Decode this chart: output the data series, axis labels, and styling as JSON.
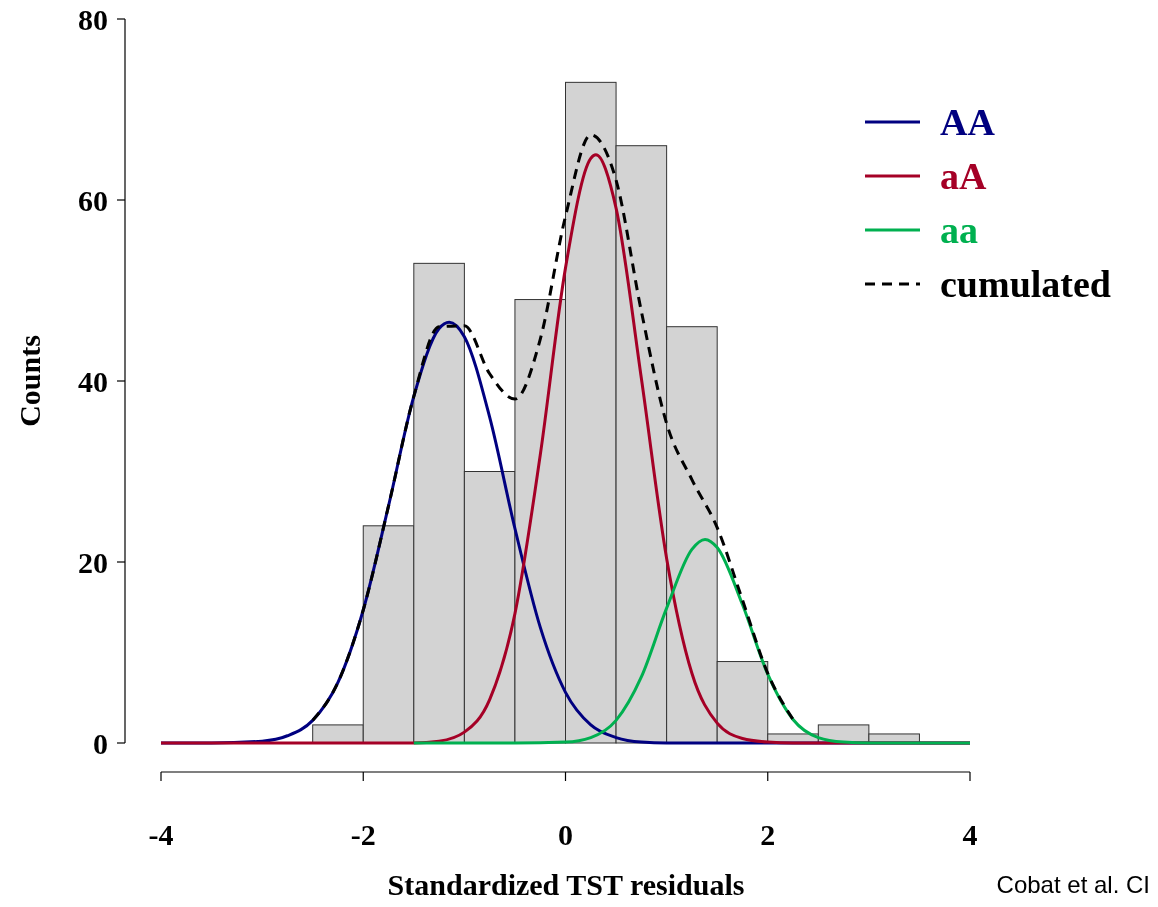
{
  "chart_data": {
    "type": "histogram",
    "xlabel": "Standardized TST residuals",
    "ylabel": "Counts",
    "annotations": [
      "Cobat et al. CI"
    ],
    "bins": [
      -2.5,
      -2,
      -1.5,
      -1,
      -0.5,
      0,
      0.5,
      1,
      1.5,
      2,
      2.5,
      3,
      3.5
    ],
    "values": [
      2,
      24,
      53,
      30,
      49,
      73,
      66,
      46,
      9,
      1,
      2,
      1
    ],
    "color": "#d3d3d3",
    "xlim": [
      -4,
      4
    ],
    "xticks": [
      -4,
      -2,
      0,
      2,
      4
    ],
    "ylim": [
      0,
      80
    ],
    "yticks": [
      0,
      20,
      40,
      60,
      80
    ],
    "grid": false,
    "legend": "top right",
    "series": [
      {
        "name": "AA",
        "type": "line",
        "color": "#000080",
        "line_style": "solid",
        "x": [
          -4,
          -3.5,
          -3,
          -2.75,
          -2.5,
          -2.25,
          -2,
          -1.75,
          -1.5,
          -1.25,
          -1.15,
          -1,
          -0.75,
          -0.5,
          -0.25,
          0,
          0.25,
          0.5,
          0.75,
          1,
          1.5,
          2,
          3,
          4
        ],
        "values": [
          0,
          0,
          0.2,
          0.8,
          2.5,
          6.7,
          14.7,
          26.2,
          38.3,
          45.8,
          46.5,
          44.9,
          36,
          23.7,
          12.8,
          5.6,
          2,
          0.6,
          0.1,
          0,
          0,
          0,
          0,
          0
        ]
      },
      {
        "name": "aA",
        "type": "line",
        "color": "#a50026",
        "line_style": "solid",
        "x": [
          -4,
          -3,
          -2,
          -1.5,
          -1.25,
          -1,
          -0.75,
          -0.5,
          -0.25,
          0,
          0.25,
          0.3,
          0.5,
          0.75,
          1,
          1.25,
          1.5,
          1.75,
          2,
          2.25,
          3,
          4
        ],
        "values": [
          0,
          0,
          0,
          0,
          0.2,
          1.2,
          4.8,
          14.3,
          31.8,
          52.5,
          64.6,
          65,
          59.1,
          40.3,
          20.4,
          7.7,
          2.2,
          0.5,
          0.1,
          0,
          0,
          0
        ]
      },
      {
        "name": "aa",
        "type": "line",
        "color": "#00b050",
        "line_style": "solid",
        "x": [
          -1.5,
          -0.5,
          0,
          0.25,
          0.5,
          0.75,
          1,
          1.25,
          1.38,
          1.5,
          1.75,
          2,
          2.25,
          2.5,
          2.75,
          3,
          4
        ],
        "values": [
          0,
          0,
          0.1,
          0.6,
          2.5,
          7.3,
          14.9,
          21.4,
          22.5,
          21.6,
          15.3,
          7.6,
          2.6,
          0.6,
          0.1,
          0,
          0
        ]
      },
      {
        "name": "cumulated",
        "type": "line",
        "color": "#000000",
        "line_style": "dashed",
        "x": [
          -2.5,
          -2.25,
          -2,
          -1.75,
          -1.5,
          -1.25,
          -1,
          -0.75,
          -0.5,
          -0.25,
          0,
          0.25,
          0.5,
          0.75,
          1,
          1.25,
          1.5,
          1.75,
          2,
          2.25
        ],
        "values": [
          2.5,
          6.7,
          14.7,
          26.2,
          38.3,
          46,
          46.1,
          40.8,
          38,
          44.6,
          58.2,
          67.2,
          62.2,
          47.7,
          35.3,
          29.1,
          23.8,
          15.8,
          7.7,
          2.6
        ]
      }
    ]
  }
}
